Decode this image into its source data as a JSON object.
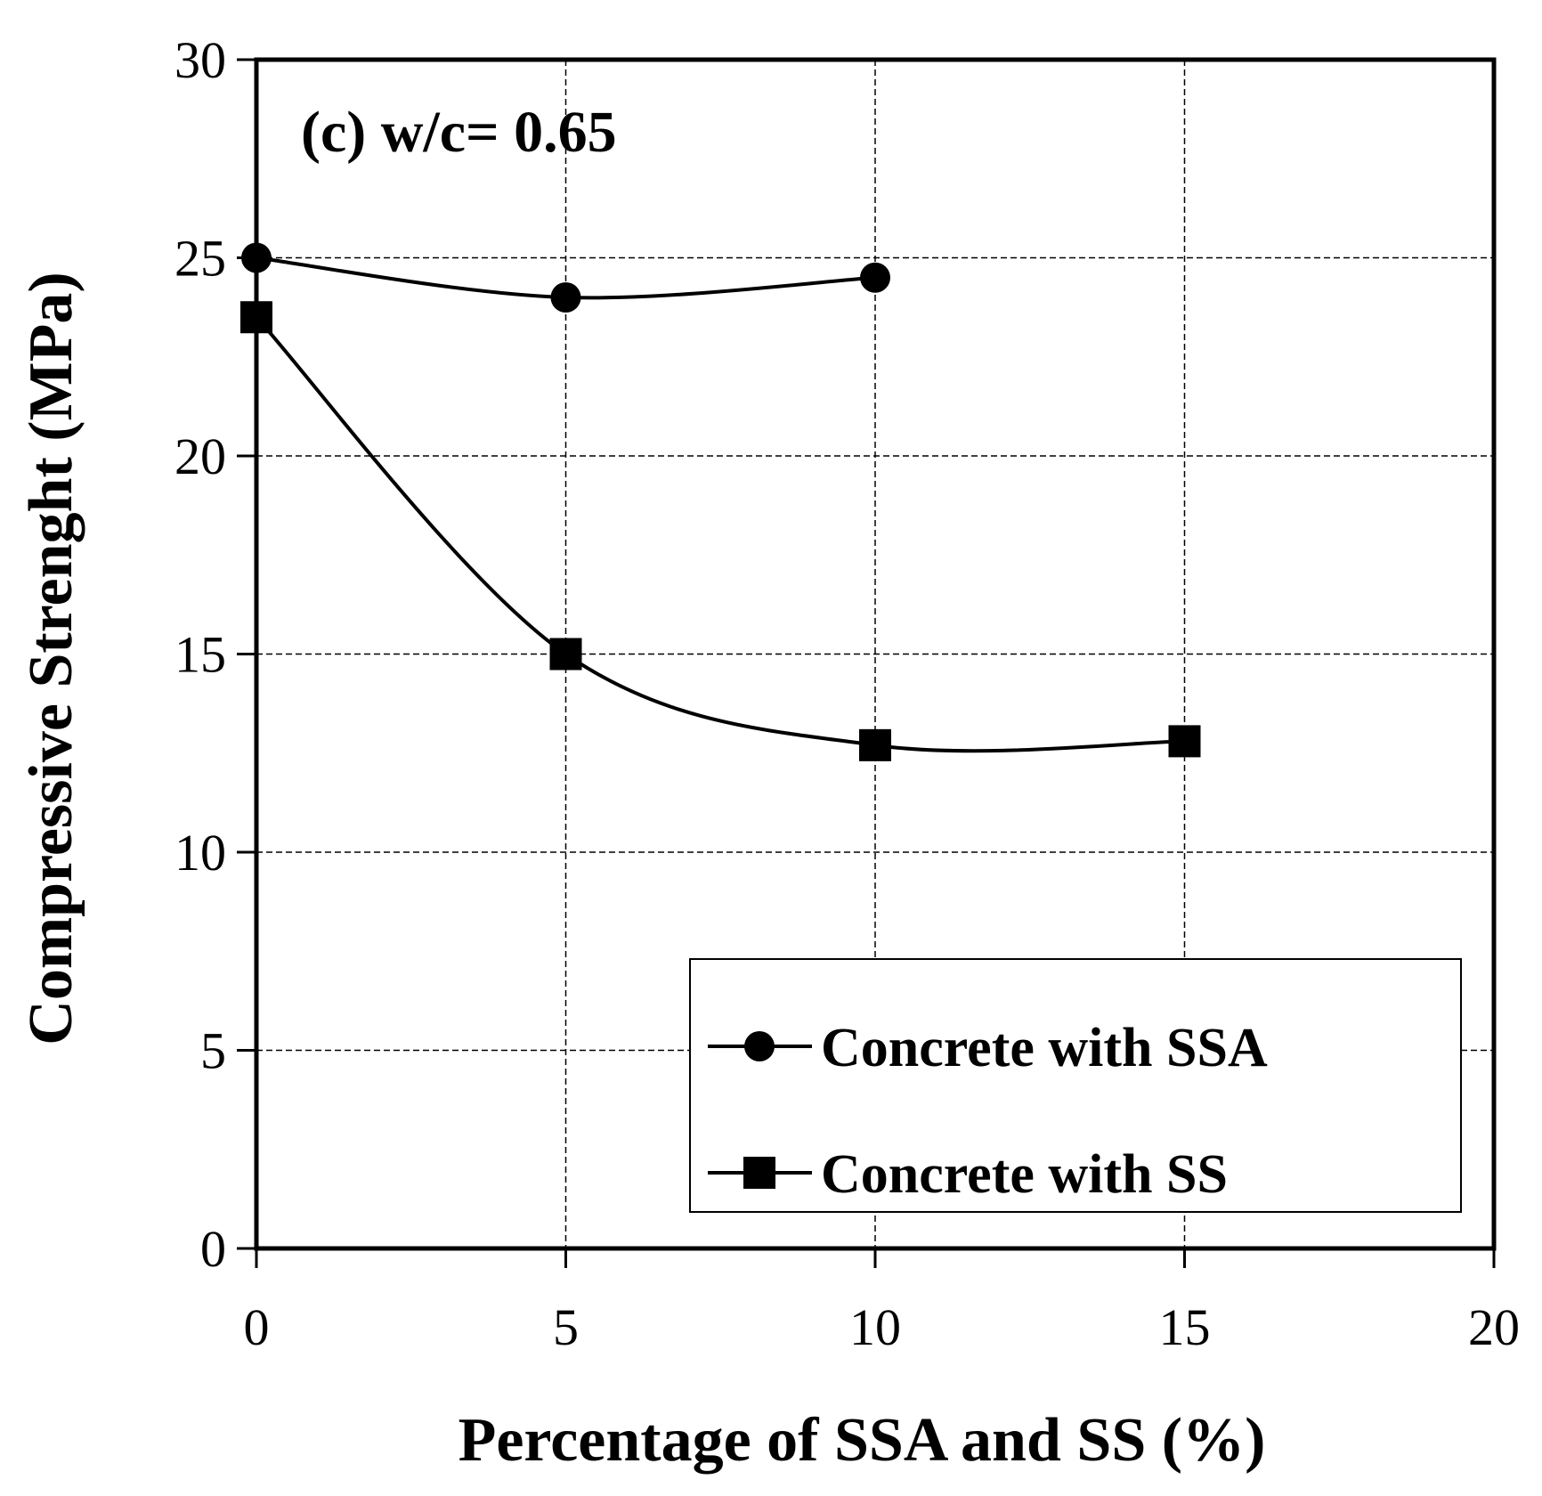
{
  "chart_data": {
    "type": "line",
    "title": "",
    "annotation": "(c)  w/c= 0.65",
    "xlabel": "Percentage of  SSA and SS (%)",
    "ylabel": "Compressive Strenght (MPa)",
    "xlim": [
      0,
      20
    ],
    "ylim": [
      0,
      30
    ],
    "xticks": [
      0,
      5,
      10,
      15,
      20
    ],
    "yticks": [
      0,
      5,
      10,
      15,
      20,
      25,
      30
    ],
    "grid": true,
    "legend_position": "bottom-right",
    "series": [
      {
        "name": "Concrete with SSA",
        "marker": "circle",
        "smooth": true,
        "x": [
          0,
          5,
          10
        ],
        "y": [
          25.0,
          24.0,
          24.5
        ]
      },
      {
        "name": "Concrete with SS",
        "marker": "square",
        "smooth": true,
        "x": [
          0,
          5,
          10,
          15
        ],
        "y": [
          23.5,
          15.0,
          12.7,
          12.8
        ]
      }
    ]
  }
}
